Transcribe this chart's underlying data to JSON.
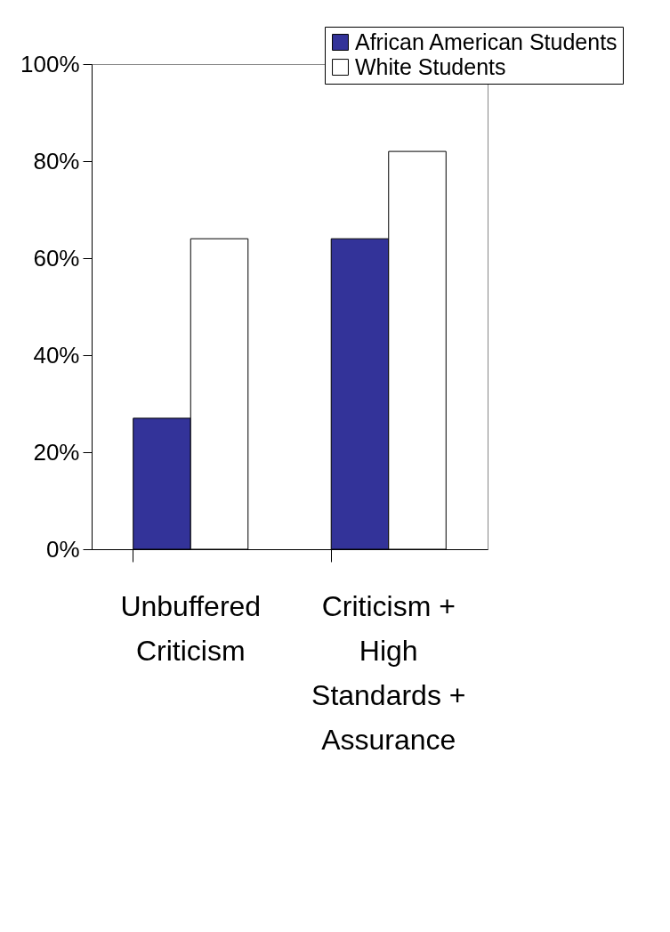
{
  "chart_data": {
    "type": "bar",
    "categories": [
      "Unbuffered\nCriticism",
      "Criticism +\nHigh\nStandards +\nAssurance"
    ],
    "series": [
      {
        "name": "African American Students",
        "color": "#333399",
        "values": [
          27,
          64
        ]
      },
      {
        "name": "White Students",
        "color": "#ffffff",
        "values": [
          64,
          82
        ]
      }
    ],
    "ylim": [
      0,
      100
    ],
    "yticks": [
      {
        "value": 0,
        "label": "0%"
      },
      {
        "value": 20,
        "label": "20%"
      },
      {
        "value": 40,
        "label": "40%"
      },
      {
        "value": 60,
        "label": "60%"
      },
      {
        "value": 80,
        "label": "80%"
      },
      {
        "value": 100,
        "label": "100%"
      }
    ],
    "legend": "top right",
    "grid": false
  }
}
